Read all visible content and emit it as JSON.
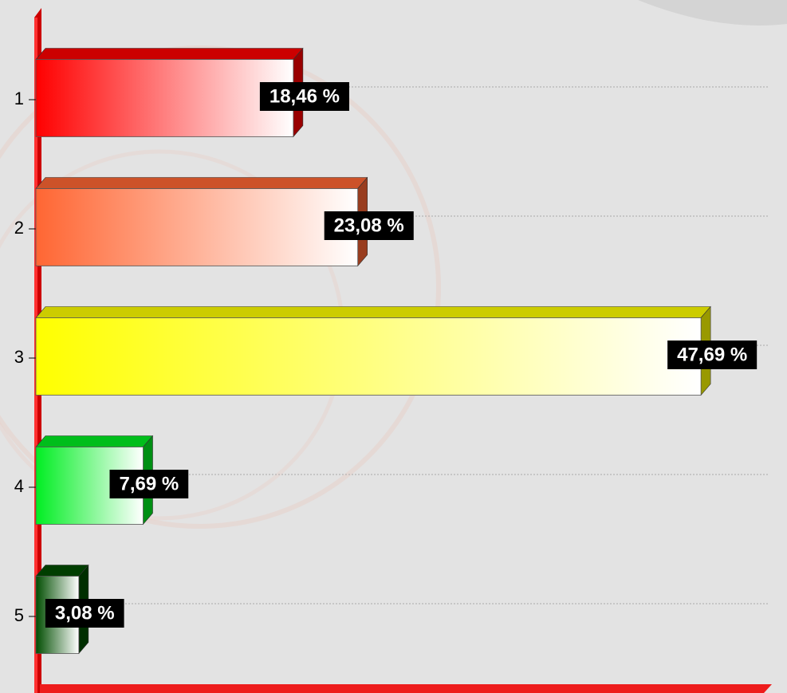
{
  "chart_data": {
    "type": "bar",
    "orientation": "horizontal",
    "categories": [
      "1",
      "2",
      "3",
      "4",
      "5"
    ],
    "values": [
      18.46,
      23.08,
      47.69,
      7.69,
      3.08
    ],
    "value_labels": [
      "18,46 %",
      "23,08 %",
      "47,69 %",
      "7,69 %",
      "3,08 %"
    ],
    "colors": [
      "#ff0000",
      "#ff6633",
      "#ffff00",
      "#00ee22",
      "#004d00"
    ],
    "xlim": [
      0,
      52.6
    ],
    "grid": true
  }
}
